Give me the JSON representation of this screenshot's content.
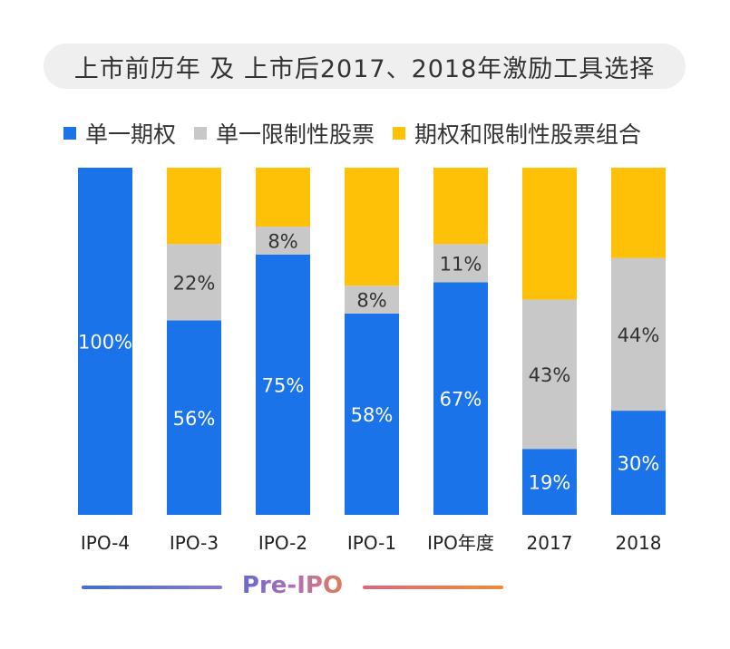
{
  "title": "上市前历年 及 上市后2017、2018年激励工具选择",
  "footer_label": "Pre-IPO",
  "colors": {
    "stock_option": "#1a73e8",
    "restricted_stock": "#c8c8c8",
    "combination": "#ffc107"
  },
  "chart_data": {
    "type": "bar",
    "stacked": true,
    "normalized_to_100": true,
    "categories": [
      "IPO-4",
      "IPO-3",
      "IPO-2",
      "IPO-1",
      "IPO年度",
      "2017",
      "2018"
    ],
    "series": [
      {
        "name": "单一期权",
        "values": [
          100,
          56,
          75,
          58,
          67,
          19,
          30
        ],
        "labels": [
          "100%",
          "56%",
          "75%",
          "58%",
          "67%",
          "19%",
          "30%"
        ]
      },
      {
        "name": "单一限制性股票",
        "values": [
          0,
          22,
          8,
          8,
          11,
          43,
          44
        ],
        "labels": [
          "",
          "22%",
          "8%",
          "8%",
          "11%",
          "43%",
          "44%"
        ]
      },
      {
        "name": "期权和限制性股票组合",
        "values": [
          0,
          22,
          17,
          34,
          22,
          38,
          26
        ],
        "labels": [
          "",
          "",
          "",
          "",
          "",
          "",
          ""
        ]
      }
    ],
    "ylim": [
      0,
      100
    ],
    "legend_position": "top",
    "grid": false
  }
}
